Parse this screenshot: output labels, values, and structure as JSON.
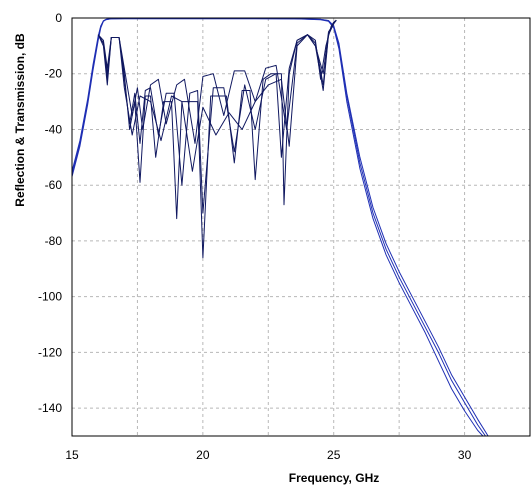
{
  "chart_data": {
    "type": "line",
    "xlabel": "Frequency, GHz",
    "ylabel": "Reflection & Transmission, dB",
    "xlim": [
      15,
      32.5
    ],
    "ylim": [
      -150,
      0
    ],
    "x_ticks": [
      15,
      20,
      25,
      30
    ],
    "y_ticks": [
      0,
      -20,
      -40,
      -60,
      -80,
      -100,
      -120,
      -140
    ],
    "x_tick_labels": [
      "15",
      "20",
      "25",
      "30"
    ],
    "y_tick_labels": [
      "0",
      "-20",
      "-40",
      "-60",
      "-80",
      "-100",
      "-120",
      "-140"
    ],
    "grid": true,
    "legend": "none",
    "colors": {
      "transmission": "#1f2fb4",
      "reflection": "#101860",
      "grid": "#b8b8b8"
    },
    "series": [
      {
        "role": "transmission",
        "x": [
          15.0,
          15.3,
          15.6,
          15.8,
          16.0,
          16.1,
          16.2,
          16.3,
          16.5,
          17.0,
          18.0,
          20.0,
          22.0,
          23.5,
          24.5,
          24.8,
          25.0,
          25.2,
          25.5,
          26.0,
          26.5,
          27.0,
          27.5,
          28.0,
          28.5,
          29.0,
          29.5,
          30.0,
          30.5,
          30.8
        ],
        "y": [
          -56,
          -45,
          -30,
          -18,
          -7,
          -3,
          -1,
          -0.5,
          -0.3,
          -0.2,
          -0.2,
          -0.2,
          -0.2,
          -0.3,
          -0.5,
          -1,
          -3,
          -10,
          -28,
          -52,
          -70,
          -83,
          -93,
          -102,
          -111,
          -120,
          -130,
          -138,
          -146,
          -150
        ]
      },
      {
        "role": "transmission",
        "x": [
          15.0,
          15.3,
          15.6,
          15.8,
          16.0,
          16.1,
          16.2,
          16.3,
          16.5,
          17.0,
          18.0,
          20.0,
          22.0,
          23.5,
          24.5,
          24.8,
          25.0,
          25.2,
          25.5,
          26.0,
          26.5,
          27.0,
          27.5,
          28.0,
          28.5,
          29.0,
          29.5,
          30.0,
          30.5,
          30.7
        ],
        "y": [
          -57,
          -46,
          -31,
          -19,
          -8,
          -3.5,
          -1.2,
          -0.6,
          -0.3,
          -0.2,
          -0.2,
          -0.2,
          -0.2,
          -0.3,
          -0.6,
          -1.2,
          -3.5,
          -11,
          -30,
          -54,
          -72,
          -85,
          -95,
          -104,
          -113,
          -123,
          -133,
          -141,
          -148,
          -150
        ]
      },
      {
        "role": "transmission",
        "x": [
          15.0,
          15.3,
          15.6,
          15.8,
          16.0,
          16.1,
          16.2,
          16.3,
          16.5,
          17.0,
          18.0,
          20.0,
          22.0,
          23.5,
          24.5,
          24.8,
          25.0,
          25.2,
          25.5,
          26.0,
          26.5,
          27.0,
          27.5,
          28.0,
          28.5,
          29.0,
          29.5,
          30.0,
          30.5,
          30.9
        ],
        "y": [
          -55,
          -44,
          -29,
          -17,
          -6.5,
          -2.8,
          -1,
          -0.5,
          -0.3,
          -0.2,
          -0.2,
          -0.2,
          -0.2,
          -0.3,
          -0.5,
          -0.9,
          -2.8,
          -9,
          -27,
          -50,
          -68,
          -81,
          -91,
          -100,
          -109,
          -118,
          -128,
          -136,
          -144,
          -150
        ]
      },
      {
        "role": "reflection",
        "x": [
          16.0,
          16.2,
          16.35,
          16.5,
          16.8,
          17.0,
          17.2,
          17.4,
          17.6,
          17.8,
          18.0,
          18.2,
          18.5,
          18.8,
          19.0,
          19.2,
          19.5,
          19.8,
          20.0,
          20.3,
          20.6,
          20.9,
          21.2,
          21.5,
          21.8,
          22.0,
          22.3,
          22.6,
          23.0,
          23.1,
          23.3,
          23.6,
          24.0,
          24.3,
          24.5,
          24.7,
          24.9,
          25.0,
          25.1
        ],
        "y": [
          -6,
          -10,
          -24,
          -7,
          -7,
          -20,
          -40,
          -30,
          -59,
          -28,
          -28,
          -50,
          -30,
          -30,
          -72,
          -30,
          -30,
          -30,
          -86,
          -28,
          -28,
          -28,
          -52,
          -26,
          -26,
          -58,
          -22,
          -20,
          -20,
          -67,
          -20,
          -8,
          -6,
          -8,
          -22,
          -10,
          -3,
          -1.5,
          -0.8
        ]
      },
      {
        "role": "reflection",
        "x": [
          16.0,
          16.2,
          16.35,
          16.5,
          16.8,
          17.0,
          17.2,
          17.4,
          17.6,
          17.8,
          18.0,
          18.3,
          18.6,
          18.9,
          19.2,
          19.5,
          19.8,
          20.0,
          20.4,
          20.8,
          21.2,
          21.6,
          22.0,
          22.4,
          22.8,
          23.0,
          23.3,
          23.6,
          24.0,
          24.3,
          24.6,
          24.8,
          25.0,
          25.1
        ],
        "y": [
          -6,
          -9,
          -20,
          -7,
          -7,
          -22,
          -38,
          -27,
          -45,
          -26,
          -25,
          -42,
          -27,
          -27,
          -60,
          -27,
          -26,
          -70,
          -25,
          -25,
          -48,
          -24,
          -40,
          -22,
          -20,
          -50,
          -18,
          -8,
          -6,
          -9,
          -24,
          -6,
          -2,
          -0.8
        ]
      },
      {
        "role": "reflection",
        "x": [
          16.0,
          16.2,
          16.35,
          16.5,
          16.8,
          17.0,
          17.3,
          17.5,
          17.7,
          18.0,
          18.3,
          18.6,
          19.0,
          19.3,
          19.7,
          20.0,
          20.4,
          20.8,
          21.2,
          21.6,
          22.0,
          22.4,
          22.8,
          23.2,
          23.6,
          24.0,
          24.3,
          24.6,
          24.8,
          25.0,
          25.1
        ],
        "y": [
          -6,
          -8,
          -18,
          -7,
          -7,
          -18,
          -35,
          -25,
          -40,
          -24,
          -22,
          -38,
          -24,
          -22,
          -45,
          -21,
          -20,
          -35,
          -19,
          -19,
          -30,
          -18,
          -17,
          -40,
          -9,
          -6,
          -10,
          -20,
          -5,
          -2,
          -0.8
        ]
      },
      {
        "role": "reflection",
        "x": [
          16.0,
          16.2,
          16.35,
          16.5,
          16.8,
          17.0,
          17.3,
          17.6,
          18.0,
          18.4,
          18.8,
          19.2,
          19.6,
          20.0,
          20.5,
          21.0,
          21.5,
          22.0,
          22.5,
          23.0,
          23.3,
          23.6,
          24.0,
          24.3,
          24.6,
          24.8,
          25.0,
          25.1
        ],
        "y": [
          -6,
          -9,
          -22,
          -7,
          -7,
          -25,
          -42,
          -28,
          -30,
          -44,
          -28,
          -30,
          -55,
          -32,
          -42,
          -34,
          -40,
          -30,
          -24,
          -22,
          -46,
          -10,
          -6,
          -10,
          -26,
          -6,
          -2,
          -0.8
        ]
      }
    ]
  }
}
